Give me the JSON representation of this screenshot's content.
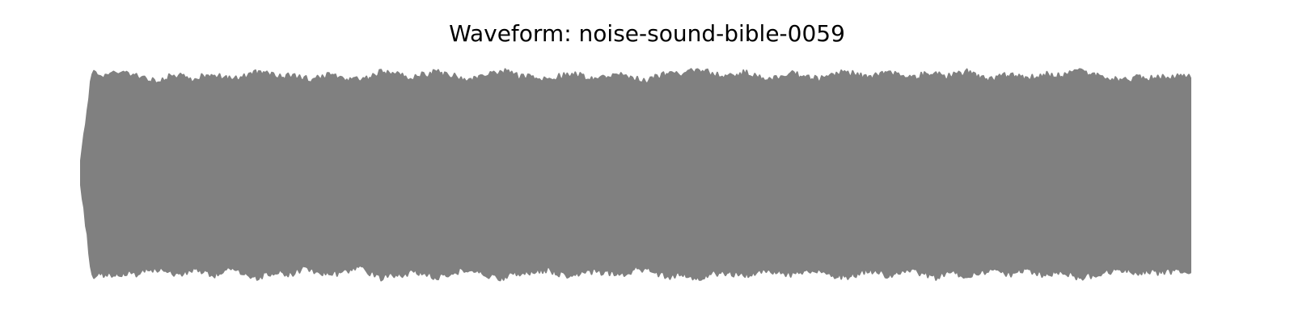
{
  "chart_data": {
    "type": "area",
    "title": "Waveform: noise-sound-bible-0059",
    "xlabel": "",
    "ylabel": "",
    "axes_visible": false,
    "grid": false,
    "ylim": [
      -1,
      1
    ],
    "x_range": [
      0,
      1
    ],
    "color": "#808080",
    "series": [
      {
        "envelope_max": [
          0.13,
          0.97,
          0.95,
          0.98,
          0.96,
          0.95,
          0.92,
          0.9,
          0.94,
          0.95,
          0.91,
          0.94,
          0.96,
          0.93,
          0.92,
          0.95,
          0.98,
          0.96,
          0.93,
          0.95,
          0.92,
          0.91,
          0.95,
          0.95,
          0.92,
          0.91,
          0.93,
          0.99,
          0.97,
          0.95,
          0.93,
          0.96,
          0.98,
          0.95,
          0.94,
          0.91,
          0.93,
          0.97,
          0.99,
          0.96,
          0.93,
          0.94,
          0.91,
          0.94,
          0.96,
          0.95,
          0.92,
          0.93,
          0.96,
          0.95,
          0.92,
          0.9,
          0.94,
          0.97,
          0.95,
          0.99,
          1.0,
          0.96,
          0.93,
          0.95,
          0.98,
          0.94,
          0.91,
          0.93,
          0.97,
          0.94,
          0.92,
          0.93,
          0.96,
          0.99,
          0.95,
          0.93,
          0.96,
          0.97,
          0.94,
          0.92,
          0.96,
          0.98,
          0.94,
          0.96,
          0.99,
          0.93,
          0.91,
          0.95,
          0.95,
          0.92,
          0.94,
          0.96,
          0.94,
          0.97,
          0.99,
          0.96,
          0.95,
          0.92,
          0.9,
          0.93,
          0.92,
          0.95,
          0.92,
          0.94,
          0.93
        ],
        "envelope_min": [
          -0.1,
          -0.97,
          -0.96,
          -0.98,
          -0.95,
          -0.96,
          -0.92,
          -0.91,
          -0.95,
          -0.96,
          -0.92,
          -0.93,
          -0.97,
          -0.92,
          -0.93,
          -0.96,
          -0.99,
          -0.95,
          -0.94,
          -0.96,
          -0.91,
          -0.92,
          -0.96,
          -0.95,
          -0.93,
          -0.9,
          -0.94,
          -1.0,
          -0.96,
          -0.96,
          -0.94,
          -0.95,
          -0.99,
          -0.96,
          -0.93,
          -0.92,
          -0.94,
          -0.98,
          -0.99,
          -0.95,
          -0.94,
          -0.93,
          -0.92,
          -0.95,
          -0.97,
          -0.94,
          -0.93,
          -0.94,
          -0.95,
          -0.96,
          -0.91,
          -0.91,
          -0.95,
          -0.98,
          -0.96,
          -0.98,
          -1.0,
          -0.95,
          -0.94,
          -0.96,
          -0.97,
          -0.95,
          -0.92,
          -0.94,
          -0.96,
          -0.95,
          -0.91,
          -0.94,
          -0.97,
          -0.98,
          -0.96,
          -0.92,
          -0.95,
          -0.98,
          -0.93,
          -0.93,
          -0.95,
          -0.99,
          -0.95,
          -0.95,
          -0.98,
          -0.94,
          -0.92,
          -0.94,
          -0.96,
          -0.91,
          -0.95,
          -0.97,
          -0.93,
          -0.96,
          -0.99,
          -0.97,
          -0.94,
          -0.93,
          -0.91,
          -0.94,
          -0.93,
          -0.94,
          -0.93,
          -0.93,
          -0.92
        ]
      }
    ]
  }
}
